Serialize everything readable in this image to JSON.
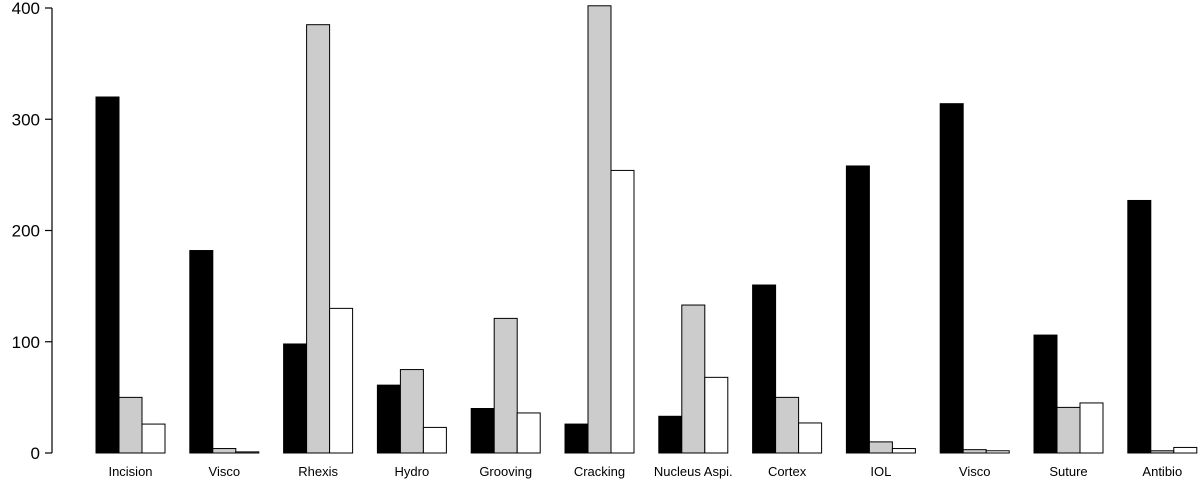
{
  "chart_data": {
    "type": "bar",
    "title": "",
    "xlabel": "",
    "ylabel": "",
    "ylim": [
      0,
      400
    ],
    "yticks": [
      0,
      100,
      200,
      300,
      400
    ],
    "grid": false,
    "legend": "none",
    "categories": [
      "Incision",
      "Visco",
      "Rhexis",
      "Hydro",
      "Grooving",
      "Cracking",
      "Nucleus Aspi.",
      "Cortex",
      "IOL",
      "Visco",
      "Suture",
      "Antibio"
    ],
    "series": [
      {
        "color": "#000000",
        "values": [
          320,
          182,
          98,
          61,
          40,
          26,
          33,
          151,
          258,
          314,
          106,
          227
        ]
      },
      {
        "color": "#cccccc",
        "values": [
          50,
          4,
          385,
          75,
          121,
          402,
          133,
          50,
          10,
          3,
          41,
          2
        ]
      },
      {
        "color": "#ffffff",
        "values": [
          26,
          1,
          130,
          23,
          36,
          254,
          68,
          27,
          4,
          2,
          45,
          5
        ]
      }
    ]
  }
}
